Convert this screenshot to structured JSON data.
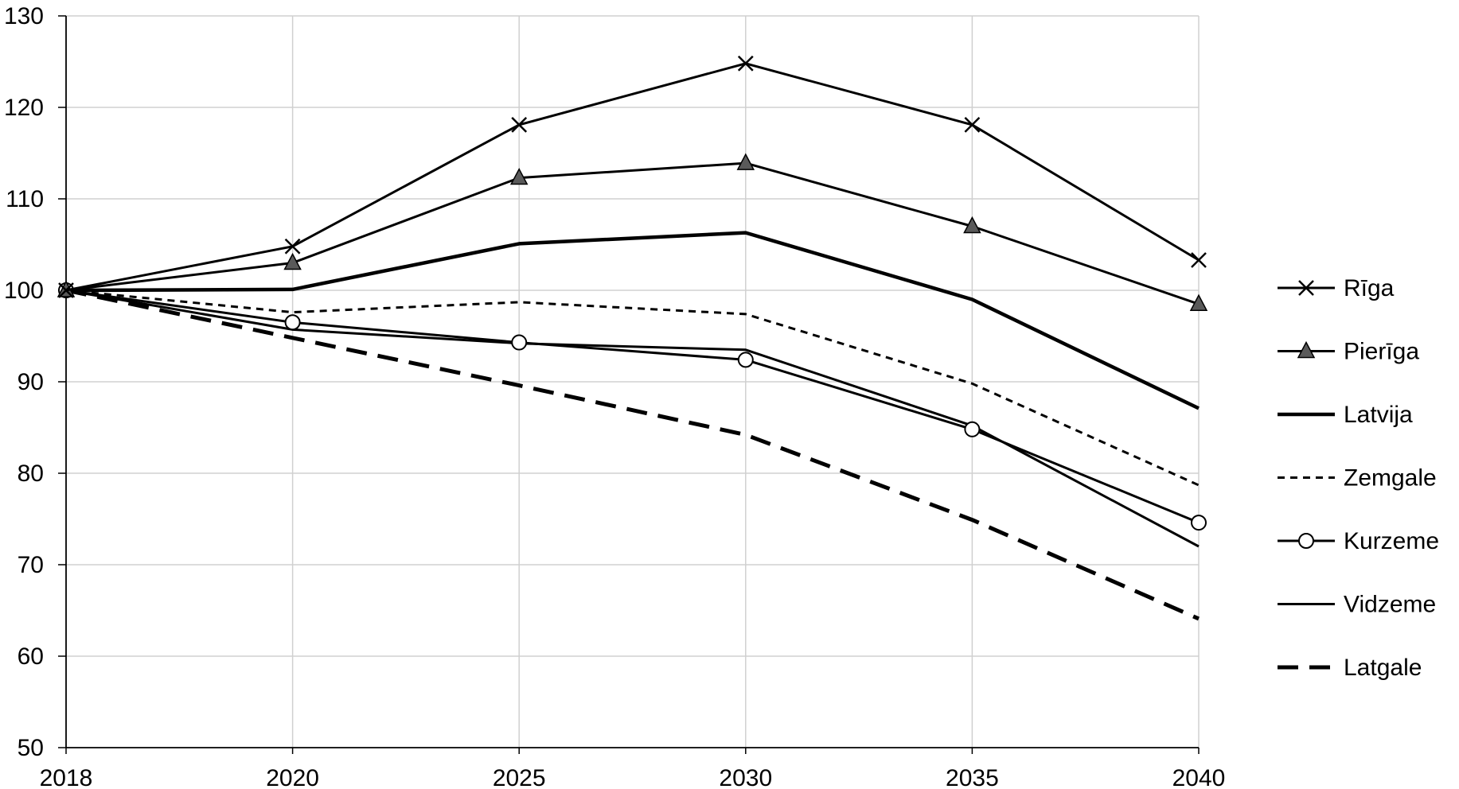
{
  "chart_data": {
    "type": "line",
    "title": "",
    "xlabel": "",
    "ylabel": "",
    "x": [
      "2018",
      "2020",
      "2025",
      "2030",
      "2035",
      "2040"
    ],
    "ylim": [
      50,
      130
    ],
    "yticks": [
      50,
      60,
      70,
      80,
      90,
      100,
      110,
      120,
      130
    ],
    "grid": true,
    "legend_position": "right",
    "series": [
      {
        "name": "Rīga",
        "values": [
          100,
          104.8,
          118.1,
          124.8,
          118.1,
          103.3
        ],
        "marker": "x",
        "style": "solid",
        "color": "#000000"
      },
      {
        "name": "Pierīga",
        "values": [
          100,
          103.0,
          112.3,
          113.9,
          107.0,
          98.5
        ],
        "marker": "triangle",
        "style": "solid",
        "color": "#000000"
      },
      {
        "name": "Latvija",
        "values": [
          100,
          100.1,
          105.1,
          106.3,
          99.0,
          87.1
        ],
        "marker": "none",
        "style": "solid-thick",
        "color": "#000000"
      },
      {
        "name": "Zemgale",
        "values": [
          100,
          97.6,
          98.7,
          97.4,
          89.8,
          78.7
        ],
        "marker": "none",
        "style": "dashed-short",
        "color": "#000000"
      },
      {
        "name": "Kurzeme",
        "values": [
          100,
          96.5,
          94.3,
          92.4,
          84.8,
          74.6
        ],
        "marker": "circle",
        "style": "solid",
        "color": "#000000"
      },
      {
        "name": "Vidzeme",
        "values": [
          100,
          95.7,
          94.2,
          93.5,
          85.2,
          72.0
        ],
        "marker": "none",
        "style": "solid",
        "color": "#000000"
      },
      {
        "name": "Latgale",
        "values": [
          100,
          94.8,
          89.6,
          84.2,
          74.9,
          64.1
        ],
        "marker": "none",
        "style": "dashed-long",
        "color": "#000000"
      }
    ]
  }
}
